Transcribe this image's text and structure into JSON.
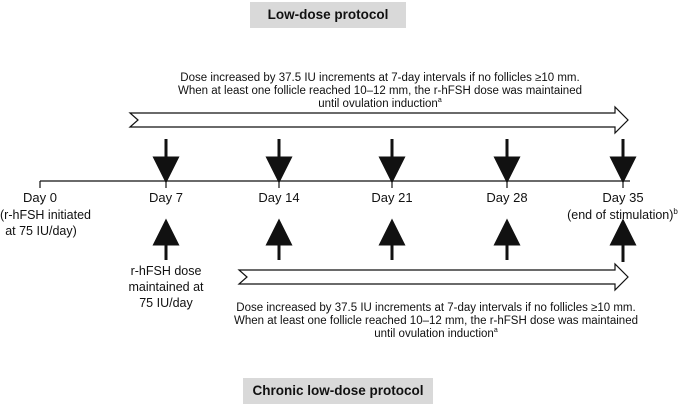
{
  "banners": {
    "low_dose": "Low-dose protocol",
    "chronic": "Chronic low-dose protocol"
  },
  "top_text": {
    "line1": "Dose increased by 37.5 IU increments at 7-day intervals if no follicles ≥10 mm.",
    "line2": "When at least one follicle reached 10–12 mm, the r-hFSH dose was maintained",
    "line3": "until ovulation induction",
    "footnote": "a"
  },
  "bottom_text": {
    "line1": "Dose increased by 37.5 IU increments at 7-day intervals if no follicles ≥10 mm.",
    "line2": "When at least one follicle reached 10–12 mm, the r-hFSH dose was maintained",
    "line3": "until ovulation induction",
    "footnote": "a"
  },
  "timeline": {
    "days": [
      "Day 0",
      "Day 7",
      "Day 14",
      "Day 21",
      "Day 28",
      "Day 35"
    ],
    "day0_note": {
      "line1": "(r-hFSH initiated",
      "line2": "at 75 IU/day)"
    },
    "day35_note": {
      "text": "(end of stimulation)",
      "footnote": "b"
    },
    "day7_note": {
      "line1": "r-hFSH dose",
      "line2": "maintained at",
      "line3": "75 IU/day"
    }
  }
}
